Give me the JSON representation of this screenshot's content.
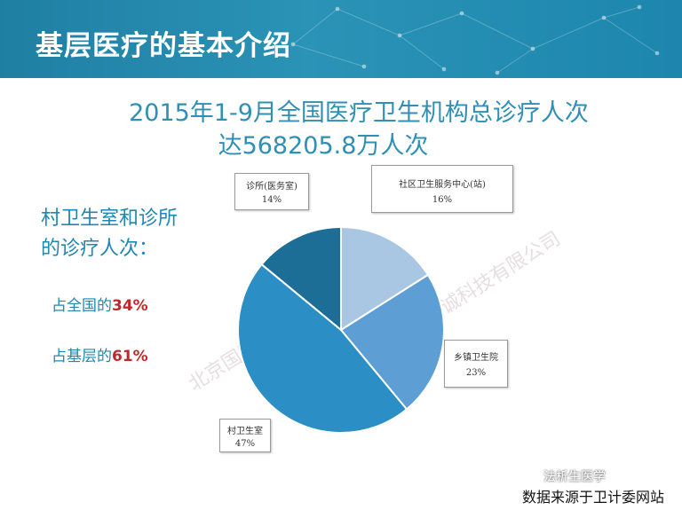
{
  "header": {
    "title": "基层医疗的基本介绍"
  },
  "main_title": {
    "line1": "2015年1-9月全国医疗卫生机构总诊疗人次",
    "line2": "达568205.8万人次"
  },
  "side": {
    "line1": "村卫生室和诊所",
    "line2": "的诊疗人次：",
    "stat1_prefix": "占全国的",
    "stat1_value": "34%",
    "stat2_prefix": "占基层的",
    "stat2_value": "61%"
  },
  "chart_data": {
    "type": "pie",
    "slices": [
      {
        "label": "社区卫生服务中心(站)",
        "value": 16,
        "value_label": "16%",
        "color": "#a9c6e2"
      },
      {
        "label": "乡镇卫生院",
        "value": 23,
        "value_label": "23%",
        "color": "#5d9fd5"
      },
      {
        "label": "村卫生室",
        "value": 47,
        "value_label": "47%",
        "color": "#2b8ec4"
      },
      {
        "label": "诊所(医务室)",
        "value": 14,
        "value_label": "14%",
        "color": "#1c6e96"
      }
    ]
  },
  "watermark": {
    "text1": "北京国医精诚科技有限公司",
    "text2": "精诚科技有限公司"
  },
  "footer": {
    "wechat": "法析生医学",
    "source": "数据来源于卫计委网站"
  }
}
